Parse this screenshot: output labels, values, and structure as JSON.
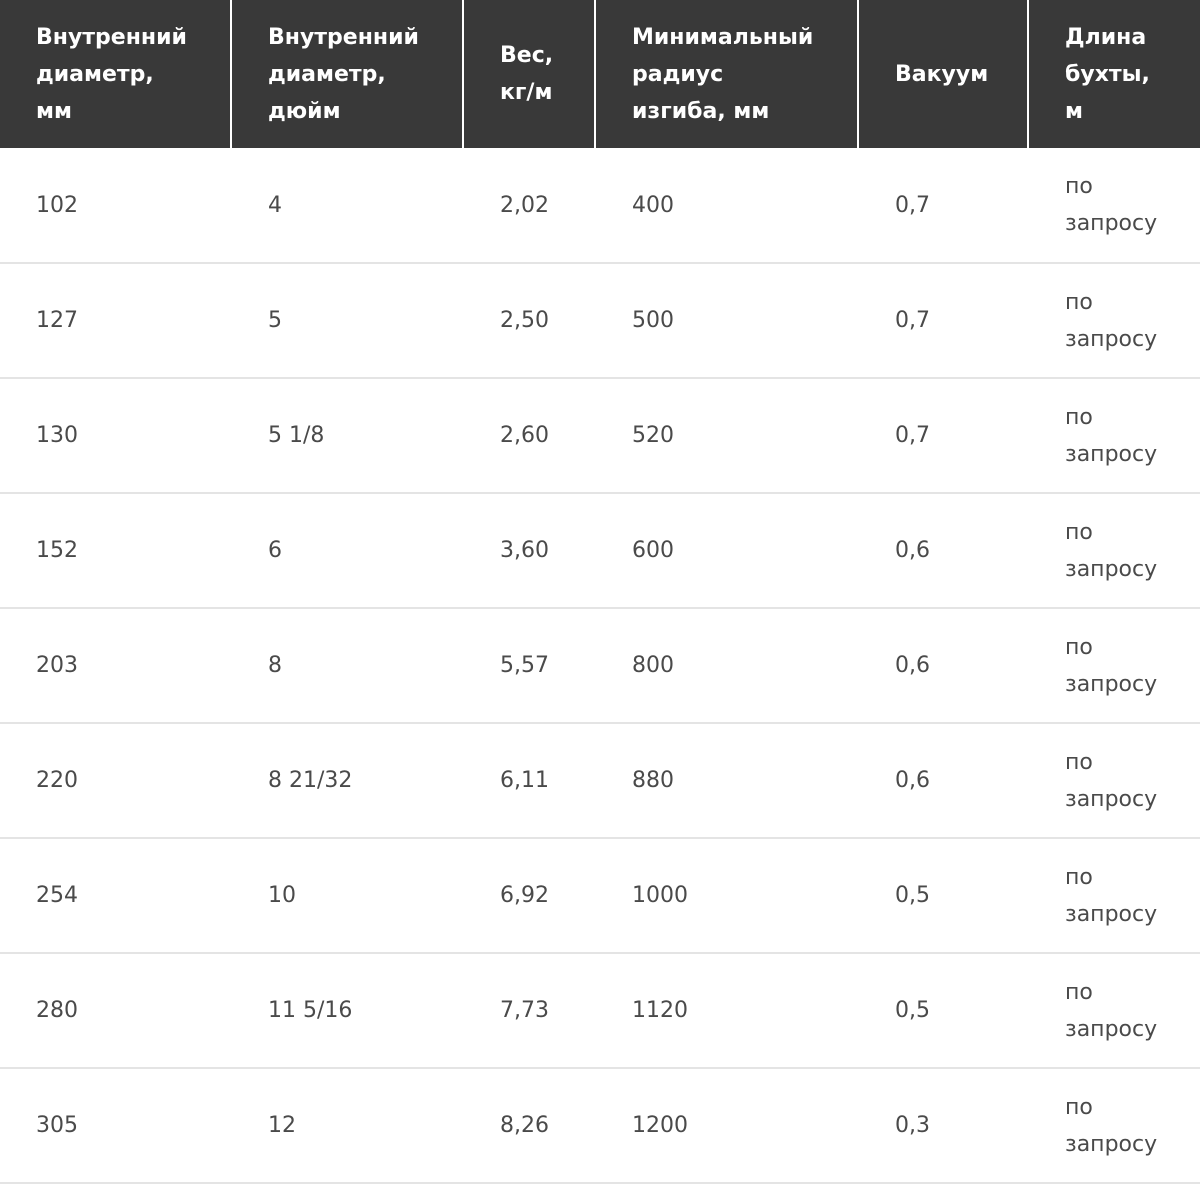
{
  "table": {
    "header": [
      "Внутренний диаметр, мм",
      "Внутренний диаметр, дюйм",
      "Вес, кг/м",
      "Минимальный радиус изгиба, мм",
      "Вакуум",
      "Длина бухты, м"
    ],
    "rows": [
      [
        "102",
        "4",
        "2,02",
        "400",
        "0,7",
        "по запросу"
      ],
      [
        "127",
        "5",
        "2,50",
        "500",
        "0,7",
        "по запросу"
      ],
      [
        "130",
        "5 1/8",
        "2,60",
        "520",
        "0,7",
        "по запросу"
      ],
      [
        "152",
        "6",
        "3,60",
        "600",
        "0,6",
        "по запросу"
      ],
      [
        "203",
        "8",
        "5,57",
        "800",
        "0,6",
        "по запросу"
      ],
      [
        "220",
        "8 21/32",
        "6,11",
        "880",
        "0,6",
        "по запросу"
      ],
      [
        "254",
        "10",
        "6,92",
        "1000",
        "0,5",
        "по запросу"
      ],
      [
        "280",
        "11 5/16",
        "7,73",
        "1120",
        "0,5",
        "по запросу"
      ],
      [
        "305",
        "12",
        "8,26",
        "1200",
        "0,3",
        "по запросу"
      ]
    ]
  }
}
